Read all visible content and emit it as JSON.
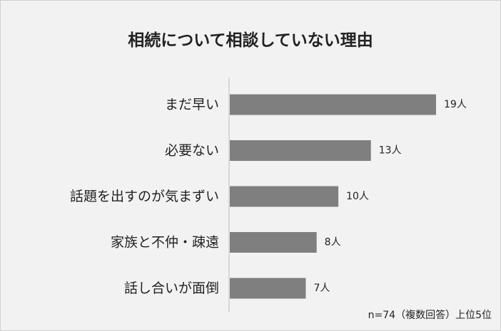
{
  "chart_data": {
    "type": "bar",
    "orientation": "horizontal",
    "title": "相続について相談していない理由",
    "categories": [
      "まだ早い",
      "必要ない",
      "話題を出すのが気まずい",
      "家族と不仲・疎遠",
      "話し合いが面倒"
    ],
    "values": [
      19,
      13,
      10,
      8,
      7
    ],
    "value_labels": [
      "19人",
      "13人",
      "10人",
      "8人",
      "7人"
    ],
    "xlim": [
      0,
      19
    ],
    "grid": false,
    "bar_color": "#7f7f7f",
    "note": "n=74（複数回答）上位5位"
  }
}
